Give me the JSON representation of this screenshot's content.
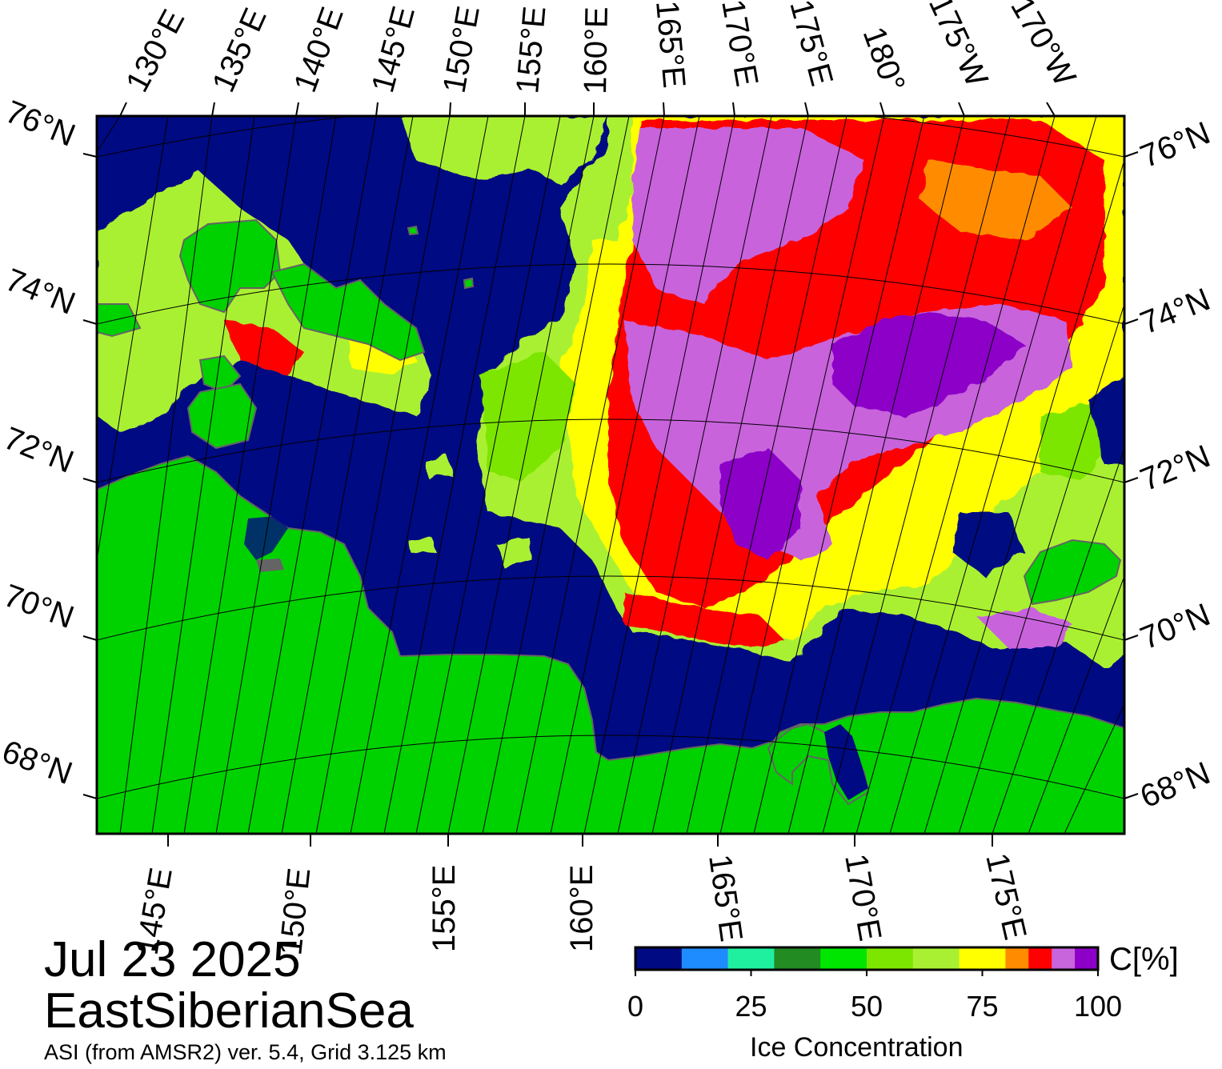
{
  "map": {
    "region": "EastSiberianSea",
    "date": "Jul 23 2025",
    "product": "ASI (from AMSR2) ver. 5.4,  Grid 3.125 km",
    "top_lon_labels": [
      "130°E",
      "135°E",
      "140°E",
      "145°E",
      "150°E",
      "155°E",
      "160°E",
      "165°E",
      "170°E",
      "175°E",
      "180°",
      "175°W",
      "170°W"
    ],
    "bottom_lon_labels": [
      "145°E",
      "150°E",
      "155°E",
      "160°E",
      "165°E",
      "170°E",
      "175°E"
    ],
    "left_lat_labels": [
      "76°N",
      "74°N",
      "72°N",
      "70°N",
      "68°N"
    ],
    "right_lat_labels": [
      "76°N",
      "74°N",
      "72°N",
      "70°N",
      "68°N"
    ],
    "colors": {
      "ocean": "#000a82",
      "land": "#00d200",
      "frame": "#000000",
      "grid": "#000000",
      "coast": "#646464"
    }
  },
  "legend": {
    "title": "Ice Concentration",
    "unit_label": "C[%]",
    "tick_labels": [
      "0",
      "25",
      "50",
      "75",
      "100"
    ],
    "tick_values": [
      0,
      25,
      50,
      75,
      100
    ],
    "classes": [
      {
        "from": 0,
        "to": 10,
        "color": "#000a82"
      },
      {
        "from": 10,
        "to": 20,
        "color": "#1e8cff"
      },
      {
        "from": 20,
        "to": 30,
        "color": "#1ef0a0"
      },
      {
        "from": 30,
        "to": 40,
        "color": "#228b22"
      },
      {
        "from": 40,
        "to": 50,
        "color": "#00e600"
      },
      {
        "from": 50,
        "to": 60,
        "color": "#7ce600"
      },
      {
        "from": 60,
        "to": 70,
        "color": "#aaf032"
      },
      {
        "from": 70,
        "to": 80,
        "color": "#ffff00"
      },
      {
        "from": 80,
        "to": 85,
        "color": "#ff8c00"
      },
      {
        "from": 85,
        "to": 90,
        "color": "#ff0000"
      },
      {
        "from": 90,
        "to": 95,
        "color": "#c864dc"
      },
      {
        "from": 95,
        "to": 100,
        "color": "#8c00c8"
      }
    ]
  }
}
